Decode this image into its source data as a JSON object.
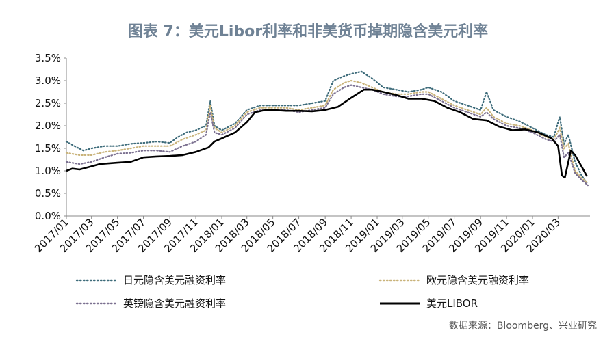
{
  "title": "图表 7：美元Libor利率和非美货币掉期隐含美元利率",
  "source": "数据来源：Bloomberg、兴业研究",
  "chart_data": {
    "type": "line",
    "title": "图表 7：美元Libor利率和非美货币掉期隐含美元利率",
    "xlabel": "",
    "ylabel": "",
    "ylim": [
      0,
      3.5
    ],
    "yticks": [
      "0.0%",
      "0.5%",
      "1.0%",
      "1.5%",
      "2.0%",
      "2.5%",
      "3.0%",
      "3.5%"
    ],
    "yticks_values": [
      0,
      0.5,
      1,
      1.5,
      2,
      2.5,
      3,
      3.5
    ],
    "x_range": [
      "2017-01-01",
      "2020-05-15"
    ],
    "x_tick_dates": [
      "2017-01-01",
      "2017-03-01",
      "2017-05-01",
      "2017-07-01",
      "2017-09-01",
      "2017-11-01",
      "2018-01-01",
      "2018-03-01",
      "2018-05-01",
      "2018-07-01",
      "2018-09-01",
      "2018-11-01",
      "2019-01-01",
      "2019-03-01",
      "2019-05-01",
      "2019-07-01",
      "2019-09-01",
      "2019-11-01",
      "2020-01-01",
      "2020-03-01"
    ],
    "x_tick_labels": [
      "2017/01",
      "2017/03",
      "2017/05",
      "2017/07",
      "2017/09",
      "2017/11",
      "2018/01",
      "2018/03",
      "2018/05",
      "2018/07",
      "2018/09",
      "2018/11",
      "2019/01",
      "2019/03",
      "2019/05",
      "2019/07",
      "2019/09",
      "2019/11",
      "2020/01",
      "2020/03"
    ],
    "grid": false,
    "legend_position": "bottom",
    "series": [
      {
        "name": "日元隐含美元融资利率",
        "color": "#3d6b7a",
        "style": "dotted",
        "points": [
          [
            "2017-01-01",
            1.65
          ],
          [
            "2017-01-20",
            1.55
          ],
          [
            "2017-02-10",
            1.45
          ],
          [
            "2017-03-01",
            1.5
          ],
          [
            "2017-04-01",
            1.55
          ],
          [
            "2017-05-01",
            1.55
          ],
          [
            "2017-06-01",
            1.6
          ],
          [
            "2017-07-01",
            1.62
          ],
          [
            "2017-08-01",
            1.65
          ],
          [
            "2017-09-01",
            1.62
          ],
          [
            "2017-09-20",
            1.75
          ],
          [
            "2017-10-10",
            1.85
          ],
          [
            "2017-11-01",
            1.9
          ],
          [
            "2017-11-25",
            2.0
          ],
          [
            "2017-12-05",
            2.55
          ],
          [
            "2017-12-15",
            2.0
          ],
          [
            "2018-01-01",
            1.9
          ],
          [
            "2018-02-01",
            2.05
          ],
          [
            "2018-03-01",
            2.35
          ],
          [
            "2018-04-01",
            2.45
          ],
          [
            "2018-05-01",
            2.45
          ],
          [
            "2018-06-01",
            2.45
          ],
          [
            "2018-07-01",
            2.45
          ],
          [
            "2018-08-01",
            2.5
          ],
          [
            "2018-09-01",
            2.55
          ],
          [
            "2018-09-20",
            3.0
          ],
          [
            "2018-10-15",
            3.1
          ],
          [
            "2018-11-01",
            3.15
          ],
          [
            "2018-11-25",
            3.2
          ],
          [
            "2018-12-20",
            3.05
          ],
          [
            "2019-01-15",
            2.85
          ],
          [
            "2019-02-15",
            2.8
          ],
          [
            "2019-03-15",
            2.75
          ],
          [
            "2019-04-15",
            2.8
          ],
          [
            "2019-05-01",
            2.85
          ],
          [
            "2019-06-01",
            2.75
          ],
          [
            "2019-07-01",
            2.55
          ],
          [
            "2019-08-01",
            2.45
          ],
          [
            "2019-09-01",
            2.35
          ],
          [
            "2019-09-15",
            2.75
          ],
          [
            "2019-10-01",
            2.35
          ],
          [
            "2019-11-01",
            2.2
          ],
          [
            "2019-12-01",
            2.1
          ],
          [
            "2020-01-01",
            1.95
          ],
          [
            "2020-02-01",
            1.8
          ],
          [
            "2020-02-20",
            1.75
          ],
          [
            "2020-03-05",
            2.2
          ],
          [
            "2020-03-15",
            1.6
          ],
          [
            "2020-03-25",
            1.8
          ],
          [
            "2020-04-10",
            1.2
          ],
          [
            "2020-04-25",
            0.9
          ],
          [
            "2020-05-10",
            0.7
          ]
        ]
      },
      {
        "name": "欧元隐含美元融资利率",
        "color": "#c9b37a",
        "style": "dotted",
        "points": [
          [
            "2017-01-01",
            1.4
          ],
          [
            "2017-02-01",
            1.35
          ],
          [
            "2017-03-01",
            1.35
          ],
          [
            "2017-04-01",
            1.42
          ],
          [
            "2017-05-01",
            1.45
          ],
          [
            "2017-06-01",
            1.5
          ],
          [
            "2017-07-01",
            1.55
          ],
          [
            "2017-08-01",
            1.55
          ],
          [
            "2017-09-01",
            1.55
          ],
          [
            "2017-10-01",
            1.7
          ],
          [
            "2017-11-01",
            1.8
          ],
          [
            "2017-11-25",
            1.9
          ],
          [
            "2017-12-05",
            2.45
          ],
          [
            "2017-12-15",
            1.95
          ],
          [
            "2018-01-01",
            1.85
          ],
          [
            "2018-02-01",
            2.0
          ],
          [
            "2018-03-01",
            2.3
          ],
          [
            "2018-04-01",
            2.4
          ],
          [
            "2018-05-01",
            2.4
          ],
          [
            "2018-06-01",
            2.4
          ],
          [
            "2018-07-01",
            2.35
          ],
          [
            "2018-08-01",
            2.4
          ],
          [
            "2018-09-01",
            2.45
          ],
          [
            "2018-09-20",
            2.8
          ],
          [
            "2018-10-15",
            2.95
          ],
          [
            "2018-11-01",
            3.0
          ],
          [
            "2018-11-25",
            2.95
          ],
          [
            "2018-12-20",
            2.85
          ],
          [
            "2019-01-15",
            2.75
          ],
          [
            "2019-02-15",
            2.7
          ],
          [
            "2019-03-15",
            2.7
          ],
          [
            "2019-04-15",
            2.75
          ],
          [
            "2019-05-01",
            2.75
          ],
          [
            "2019-06-01",
            2.6
          ],
          [
            "2019-07-01",
            2.45
          ],
          [
            "2019-08-01",
            2.35
          ],
          [
            "2019-09-01",
            2.25
          ],
          [
            "2019-09-15",
            2.4
          ],
          [
            "2019-10-01",
            2.2
          ],
          [
            "2019-11-01",
            2.05
          ],
          [
            "2019-12-01",
            2.0
          ],
          [
            "2020-01-01",
            1.9
          ],
          [
            "2020-02-01",
            1.75
          ],
          [
            "2020-02-20",
            1.7
          ],
          [
            "2020-03-05",
            1.95
          ],
          [
            "2020-03-15",
            1.5
          ],
          [
            "2020-03-25",
            1.6
          ],
          [
            "2020-04-10",
            1.0
          ],
          [
            "2020-04-25",
            0.85
          ],
          [
            "2020-05-10",
            0.72
          ]
        ]
      },
      {
        "name": "英镑隐含美元融资利率",
        "color": "#7a6f8f",
        "style": "dotted",
        "points": [
          [
            "2017-01-01",
            1.2
          ],
          [
            "2017-02-01",
            1.15
          ],
          [
            "2017-03-01",
            1.2
          ],
          [
            "2017-04-01",
            1.3
          ],
          [
            "2017-05-01",
            1.38
          ],
          [
            "2017-06-01",
            1.4
          ],
          [
            "2017-07-01",
            1.45
          ],
          [
            "2017-08-01",
            1.45
          ],
          [
            "2017-09-01",
            1.42
          ],
          [
            "2017-10-01",
            1.55
          ],
          [
            "2017-11-01",
            1.65
          ],
          [
            "2017-11-25",
            1.8
          ],
          [
            "2017-12-05",
            2.3
          ],
          [
            "2017-12-15",
            1.85
          ],
          [
            "2018-01-01",
            1.8
          ],
          [
            "2018-02-01",
            1.95
          ],
          [
            "2018-03-01",
            2.25
          ],
          [
            "2018-04-01",
            2.35
          ],
          [
            "2018-05-01",
            2.35
          ],
          [
            "2018-06-01",
            2.35
          ],
          [
            "2018-07-01",
            2.3
          ],
          [
            "2018-08-01",
            2.35
          ],
          [
            "2018-09-01",
            2.4
          ],
          [
            "2018-09-20",
            2.7
          ],
          [
            "2018-10-15",
            2.85
          ],
          [
            "2018-11-01",
            2.9
          ],
          [
            "2018-11-25",
            2.85
          ],
          [
            "2018-12-20",
            2.8
          ],
          [
            "2019-01-15",
            2.7
          ],
          [
            "2019-02-15",
            2.65
          ],
          [
            "2019-03-15",
            2.65
          ],
          [
            "2019-04-15",
            2.7
          ],
          [
            "2019-05-01",
            2.7
          ],
          [
            "2019-06-01",
            2.55
          ],
          [
            "2019-07-01",
            2.4
          ],
          [
            "2019-08-01",
            2.3
          ],
          [
            "2019-09-01",
            2.2
          ],
          [
            "2019-09-15",
            2.3
          ],
          [
            "2019-10-01",
            2.15
          ],
          [
            "2019-11-01",
            2.0
          ],
          [
            "2019-12-01",
            1.95
          ],
          [
            "2020-01-01",
            1.85
          ],
          [
            "2020-02-01",
            1.7
          ],
          [
            "2020-02-20",
            1.65
          ],
          [
            "2020-03-05",
            1.8
          ],
          [
            "2020-03-15",
            1.3
          ],
          [
            "2020-03-25",
            1.4
          ],
          [
            "2020-04-10",
            0.95
          ],
          [
            "2020-04-25",
            0.8
          ],
          [
            "2020-05-10",
            0.68
          ]
        ]
      },
      {
        "name": "美元LIBOR",
        "color": "#000000",
        "style": "solid",
        "points": [
          [
            "2017-01-01",
            1.0
          ],
          [
            "2017-01-15",
            1.05
          ],
          [
            "2017-02-01",
            1.03
          ],
          [
            "2017-03-01",
            1.1
          ],
          [
            "2017-03-20",
            1.15
          ],
          [
            "2017-05-01",
            1.18
          ],
          [
            "2017-06-01",
            1.2
          ],
          [
            "2017-07-01",
            1.3
          ],
          [
            "2017-08-01",
            1.32
          ],
          [
            "2017-09-01",
            1.33
          ],
          [
            "2017-10-01",
            1.35
          ],
          [
            "2017-11-01",
            1.42
          ],
          [
            "2017-12-01",
            1.52
          ],
          [
            "2017-12-15",
            1.65
          ],
          [
            "2018-01-01",
            1.72
          ],
          [
            "2018-02-01",
            1.85
          ],
          [
            "2018-03-01",
            2.08
          ],
          [
            "2018-03-20",
            2.3
          ],
          [
            "2018-04-15",
            2.35
          ],
          [
            "2018-05-01",
            2.35
          ],
          [
            "2018-06-01",
            2.33
          ],
          [
            "2018-07-01",
            2.33
          ],
          [
            "2018-08-01",
            2.32
          ],
          [
            "2018-09-01",
            2.35
          ],
          [
            "2018-10-01",
            2.42
          ],
          [
            "2018-11-01",
            2.62
          ],
          [
            "2018-12-01",
            2.8
          ],
          [
            "2018-12-20",
            2.8
          ],
          [
            "2019-01-15",
            2.75
          ],
          [
            "2019-02-15",
            2.68
          ],
          [
            "2019-03-15",
            2.6
          ],
          [
            "2019-04-15",
            2.6
          ],
          [
            "2019-05-15",
            2.55
          ],
          [
            "2019-06-15",
            2.4
          ],
          [
            "2019-07-15",
            2.3
          ],
          [
            "2019-08-15",
            2.15
          ],
          [
            "2019-09-15",
            2.12
          ],
          [
            "2019-10-15",
            1.98
          ],
          [
            "2019-11-15",
            1.9
          ],
          [
            "2019-12-15",
            1.92
          ],
          [
            "2020-01-15",
            1.85
          ],
          [
            "2020-02-15",
            1.72
          ],
          [
            "2020-03-01",
            1.55
          ],
          [
            "2020-03-10",
            0.9
          ],
          [
            "2020-03-17",
            0.85
          ],
          [
            "2020-03-31",
            1.45
          ],
          [
            "2020-04-10",
            1.35
          ],
          [
            "2020-04-25",
            1.1
          ],
          [
            "2020-05-08",
            0.88
          ]
        ]
      }
    ]
  }
}
